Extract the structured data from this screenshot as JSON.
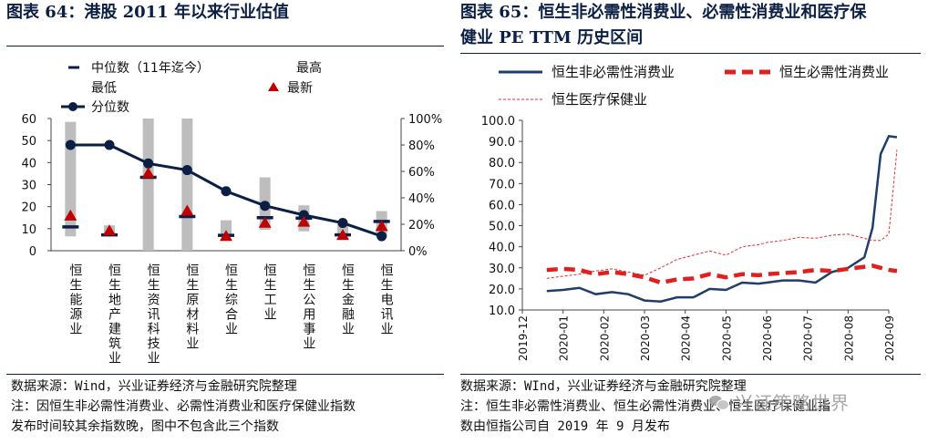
{
  "left": {
    "title": "图表 64：港股 2011 年以来行业估值",
    "source_lines": [
      "数据来源：Wind，兴业证券经济与金融研究院整理",
      "注：因恒生非必需性消费业、必需性消费业和医疗保健业指数",
      "发布时间较其余指数晚，图中不包含此三个指数"
    ]
  },
  "right": {
    "title_line1": "图表 65：恒生非必需性消费业、必需性消费业和医疗保",
    "title_line2": "健业 PE TTM 历史区间",
    "source_lines": [
      "数据来源：WInd，兴业证券经济与金融研究院整理",
      "注：恒生非必需性消费业、恒生必需性消费业、恒生医疗保健业指",
      "数由恒指公司自 2019 年 9 月发布"
    ]
  },
  "watermark": "兴证策略世界",
  "colors": {
    "navy": "#0b1f44",
    "gray_bar": "#bdbdbd",
    "red_triangle": "#c00000",
    "line_navy": "#1f3e6b",
    "line_red": "#e02020",
    "line_red_dot": "#e03030"
  },
  "chart_data": [
    {
      "type": "bar",
      "categories": [
        "恒生能源业",
        "恒生地产建筑业",
        "恒生资讯科技业",
        "恒生原材料业",
        "恒生综合业",
        "恒生工业",
        "恒生公用事业",
        "恒生金融业",
        "恒生电讯业"
      ],
      "legend": {
        "median": "中位数（11年迄今）",
        "high": "最高",
        "low": "最低",
        "latest": "最新",
        "percentile": "分位数"
      },
      "y_ticks": [
        "0",
        "10",
        "20",
        "30",
        "40",
        "50",
        "60"
      ],
      "y2_ticks": [
        "0%",
        "20%",
        "40%",
        "60%",
        "80%",
        "100%"
      ],
      "ylim": [
        0,
        60
      ],
      "y2lim": [
        0,
        100
      ],
      "range_low": [
        6.5,
        6.8,
        0,
        0,
        6.8,
        9.5,
        8.8,
        7.0,
        6.0
      ],
      "range_high": [
        58.5,
        11.5,
        60,
        60,
        13.8,
        33.3,
        20.6,
        12.0,
        18.0
      ],
      "median": [
        10.8,
        7.2,
        33.3,
        15.5,
        7.0,
        15.0,
        14.8,
        7.2,
        13.3
      ],
      "latest": [
        15.8,
        9.0,
        35.0,
        18.0,
        6.5,
        12.5,
        13.0,
        7.0,
        11.0
      ],
      "percentile": [
        80,
        80,
        66,
        61,
        45,
        34,
        27,
        21,
        11
      ]
    },
    {
      "type": "line",
      "x_ticks": [
        "2019-12",
        "2020-01",
        "2020-02",
        "2020-03",
        "2020-04",
        "2020-05",
        "2020-06",
        "2020-07",
        "2020-08",
        "2020-09"
      ],
      "y_ticks": [
        "10.0",
        "20.0",
        "30.0",
        "40.0",
        "50.0",
        "60.0",
        "70.0",
        "80.0",
        "90.0",
        "100.0"
      ],
      "ylim": [
        10,
        100
      ],
      "x_index": [
        0.6,
        1.0,
        1.4,
        1.8,
        2.2,
        2.6,
        3.0,
        3.4,
        3.8,
        4.2,
        4.6,
        5.0,
        5.4,
        5.8,
        6.0,
        6.4,
        6.8,
        7.2,
        7.6,
        8.0,
        8.4,
        8.6,
        8.8,
        9.0,
        9.2
      ],
      "series": [
        {
          "name": "恒生非必需性消费业",
          "values": [
            19,
            19.5,
            20.5,
            17.5,
            18.5,
            17.5,
            14.5,
            14,
            16,
            16,
            20,
            19.5,
            23,
            22.5,
            23,
            24,
            24,
            23,
            28,
            30,
            35,
            49,
            84,
            92.5,
            92
          ]
        },
        {
          "name": "恒生必需性消费业",
          "values": [
            29,
            29.5,
            29,
            27,
            28,
            27,
            25.5,
            23,
            24.5,
            25,
            27,
            25.5,
            27,
            26.5,
            27,
            27.5,
            28,
            29,
            28.5,
            29.5,
            30.5,
            31,
            30,
            29,
            28.5
          ]
        },
        {
          "name": "恒生医疗保健业",
          "values": [
            25,
            26,
            27,
            28.5,
            29.5,
            28,
            26.5,
            30,
            34,
            36,
            38,
            36,
            40,
            41,
            42,
            43,
            44.5,
            44,
            45.5,
            46,
            44,
            43,
            43,
            46,
            86
          ]
        }
      ]
    }
  ]
}
